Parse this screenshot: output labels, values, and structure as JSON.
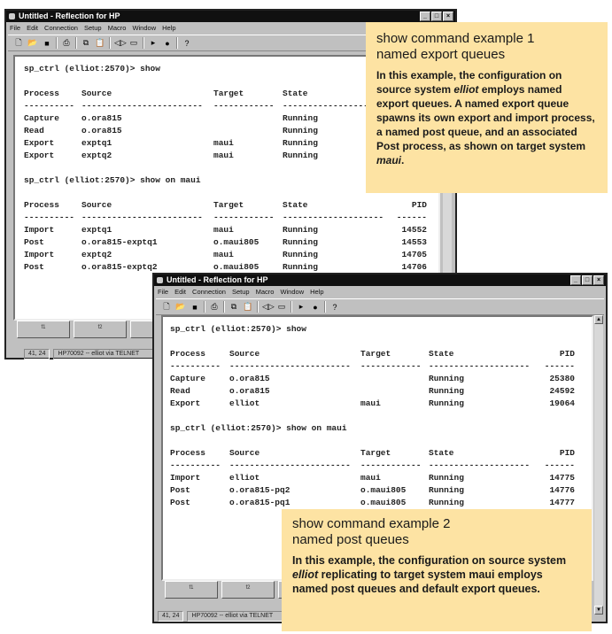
{
  "window_title": "Untitled - Reflection for HP",
  "menu": [
    "File",
    "Edit",
    "Connection",
    "Setup",
    "Macro",
    "Window",
    "Help"
  ],
  "toolbar_icons": [
    "new-icon",
    "open-icon",
    "save-icon",
    "print-icon",
    "copy-icon",
    "paste-icon",
    "connect-icon",
    "session-icon",
    "play-icon",
    "record-icon",
    "help-icon"
  ],
  "window1": {
    "lines": [
      {
        "type": "prompt",
        "text": "sp_ctrl (elliot:2570)> show"
      },
      {
        "type": "row",
        "cells": [
          "Process",
          "Source",
          "Target",
          "State",
          ""
        ]
      },
      {
        "type": "row",
        "cells": [
          "----------",
          "------------------------",
          "------------",
          "--------------------",
          ""
        ]
      },
      {
        "type": "row",
        "cells": [
          "Capture",
          "o.ora815",
          "",
          "Running",
          ""
        ]
      },
      {
        "type": "row",
        "cells": [
          "Read",
          "o.ora815",
          "",
          "Running",
          ""
        ]
      },
      {
        "type": "row",
        "cells": [
          "Export",
          "exptq1",
          "maui",
          "Running",
          ""
        ]
      },
      {
        "type": "row",
        "cells": [
          "Export",
          "exptq2",
          "maui",
          "Running",
          ""
        ]
      },
      {
        "type": "blank"
      },
      {
        "type": "prompt",
        "text": "sp_ctrl (elliot:2570)> show on maui"
      },
      {
        "type": "blank"
      },
      {
        "type": "row",
        "cells": [
          "Process",
          "Source",
          "Target",
          "State",
          "PID"
        ]
      },
      {
        "type": "row",
        "cells": [
          "----------",
          "------------------------",
          "------------",
          "--------------------",
          "------"
        ]
      },
      {
        "type": "row",
        "cells": [
          "Import",
          "exptq1",
          "maui",
          "Running",
          "14552"
        ]
      },
      {
        "type": "row",
        "cells": [
          "Post",
          "o.ora815-exptq1",
          "o.maui805",
          "Running",
          "14553"
        ]
      },
      {
        "type": "row",
        "cells": [
          "Import",
          "exptq2",
          "maui",
          "Running",
          "14705"
        ]
      },
      {
        "type": "row",
        "cells": [
          "Post",
          "o.ora815-exptq2",
          "o.maui805",
          "Running",
          "14706"
        ]
      }
    ],
    "fkeys": [
      "f1",
      "f2",
      "f3"
    ],
    "status": [
      "41, 24",
      "HP70092 -- elliot via TELNET"
    ]
  },
  "window2": {
    "lines": [
      {
        "type": "prompt",
        "text": "sp_ctrl (elliot:2570)> show"
      },
      {
        "type": "blank"
      },
      {
        "type": "row",
        "cells": [
          "Process",
          "Source",
          "Target",
          "State",
          "PID"
        ]
      },
      {
        "type": "row",
        "cells": [
          "----------",
          "------------------------",
          "------------",
          "--------------------",
          "------"
        ]
      },
      {
        "type": "row",
        "cells": [
          "Capture",
          "o.ora815",
          "",
          "Running",
          "25380"
        ]
      },
      {
        "type": "row",
        "cells": [
          "Read",
          "o.ora815",
          "",
          "Running",
          "24592"
        ]
      },
      {
        "type": "row",
        "cells": [
          "Export",
          "elliot",
          "maui",
          "Running",
          "19064"
        ]
      },
      {
        "type": "blank"
      },
      {
        "type": "prompt",
        "text": "sp_ctrl (elliot:2570)> show on maui"
      },
      {
        "type": "blank"
      },
      {
        "type": "row",
        "cells": [
          "Process",
          "Source",
          "Target",
          "State",
          "PID"
        ]
      },
      {
        "type": "row",
        "cells": [
          "----------",
          "------------------------",
          "------------",
          "--------------------",
          "------"
        ]
      },
      {
        "type": "row",
        "cells": [
          "Import",
          "elliot",
          "maui",
          "Running",
          "14775"
        ]
      },
      {
        "type": "row",
        "cells": [
          "Post",
          "o.ora815-pq2",
          "o.maui805",
          "Running",
          "14776"
        ]
      },
      {
        "type": "row",
        "cells": [
          "Post",
          "o.ora815-pq1",
          "o.maui805",
          "Running",
          "14777"
        ]
      }
    ],
    "fkeys": [
      "f1",
      "f2",
      "f3"
    ],
    "status": [
      "41, 24",
      "HP70092 -- elliot via TELNET"
    ]
  },
  "callout1": {
    "title_line1": "show command example 1",
    "title_line2": "named export queues",
    "body": "In this example, the configuration on source system elliot employs named export queues. A named export queue spawns its own export and import process, a named post queue, and an associated Post process, as shown on target system maui."
  },
  "callout2": {
    "title_line1": "show command example 2",
    "title_line2": "named post queues",
    "body": "In this example, the configuration on source system elliot replicating to target system maui employs named post queues and default export queues."
  }
}
